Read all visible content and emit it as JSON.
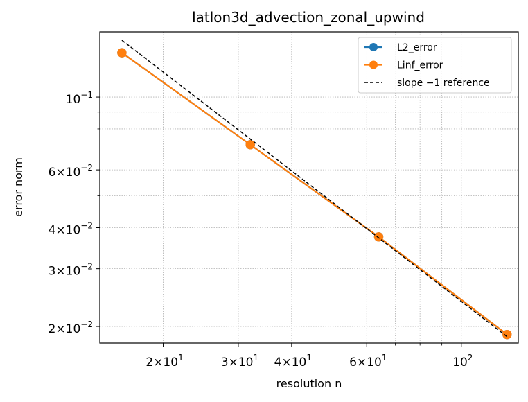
{
  "chart_data": {
    "type": "line",
    "title": "latlon3d_advection_zonal_upwind",
    "xlabel": "resolution n",
    "ylabel": "error norm",
    "xscale": "log",
    "yscale": "log",
    "xlim": [
      14.2,
      136
    ],
    "ylim": [
      0.0178,
      0.158
    ],
    "grid": true,
    "legend_position": "top-right",
    "x": [
      16,
      32,
      64,
      128
    ],
    "series": [
      {
        "name": "L2_error",
        "values": [
          0.1365,
          0.0716,
          0.0375,
          0.0189
        ],
        "color": "#1f77b4",
        "style": "solid",
        "marker": "circle"
      },
      {
        "name": "Linf_error",
        "values": [
          0.1365,
          0.0716,
          0.0375,
          0.0189
        ],
        "color": "#ff7f0e",
        "style": "solid",
        "marker": "circle"
      },
      {
        "name": "slope −1 reference",
        "values": [
          0.149,
          0.0745,
          0.03725,
          0.018625
        ],
        "color": "#000000",
        "style": "dashed",
        "marker": "none"
      }
    ],
    "x_ticks": [
      {
        "value": 20,
        "base": "2×10",
        "exp": "1"
      },
      {
        "value": 30,
        "base": "3×10",
        "exp": "1"
      },
      {
        "value": 40,
        "base": "4×10",
        "exp": "1"
      },
      {
        "value": 60,
        "base": "6×10",
        "exp": "1"
      },
      {
        "value": 100,
        "base": "10",
        "exp": "2"
      }
    ],
    "y_ticks": [
      {
        "value": 0.1,
        "base": "10",
        "exp": "−1"
      },
      {
        "value": 0.06,
        "base": "6×10",
        "exp": "−2"
      },
      {
        "value": 0.04,
        "base": "4×10",
        "exp": "−2"
      },
      {
        "value": 0.03,
        "base": "3×10",
        "exp": "−2"
      },
      {
        "value": 0.02,
        "base": "2×10",
        "exp": "−2"
      }
    ]
  }
}
